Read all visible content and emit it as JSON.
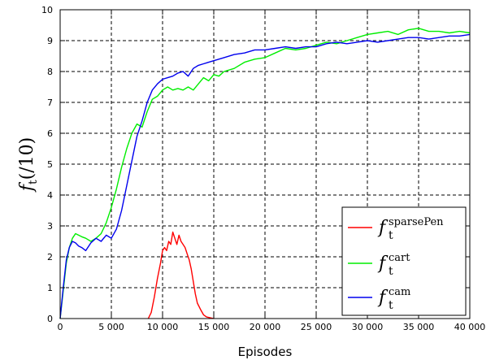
{
  "chart_data": {
    "type": "line",
    "xlabel": "Episodes",
    "ylabel": {
      "main": "f",
      "sub": "t",
      "rest": "(/10)"
    },
    "xlim": [
      0,
      40000
    ],
    "ylim": [
      0,
      10
    ],
    "xticks": [
      0,
      5000,
      10000,
      15000,
      20000,
      25000,
      30000,
      35000,
      40000
    ],
    "xtick_labels": [
      "0",
      "5 000",
      "10 000",
      "15 000",
      "20 000",
      "25 000",
      "30 000",
      "35 000",
      "40 000"
    ],
    "yticks": [
      0,
      1,
      2,
      3,
      4,
      5,
      6,
      7,
      8,
      9,
      10
    ],
    "ytick_labels": [
      "0",
      "1",
      "2",
      "3",
      "4",
      "5",
      "6",
      "7",
      "8",
      "9",
      "10"
    ],
    "grid": true,
    "legend_position": "bottom-right",
    "series": [
      {
        "name": "sparsePen",
        "legend": {
          "main": "f",
          "sup": "sparsePen",
          "sub": "t"
        },
        "color": "#ff0000",
        "x": [
          8600,
          8900,
          9200,
          9500,
          9800,
          10000,
          10200,
          10400,
          10600,
          10800,
          11000,
          11200,
          11400,
          11600,
          11800,
          12000,
          12200,
          12400,
          12600,
          12800,
          13000,
          13200,
          13400,
          13700,
          14000,
          14300,
          14700,
          15000
        ],
        "y": [
          0,
          0.2,
          0.7,
          1.3,
          1.8,
          2.2,
          2.3,
          2.2,
          2.5,
          2.4,
          2.8,
          2.6,
          2.4,
          2.7,
          2.5,
          2.4,
          2.3,
          2.1,
          1.9,
          1.6,
          1.2,
          0.8,
          0.5,
          0.3,
          0.12,
          0.05,
          0.02,
          0
        ]
      },
      {
        "name": "cart",
        "legend": {
          "main": "f",
          "sup": "cart",
          "sub": "t"
        },
        "color": "#00ee00",
        "x": [
          0,
          300,
          600,
          900,
          1200,
          1500,
          1800,
          2100,
          2500,
          3000,
          3500,
          4000,
          4500,
          5000,
          5500,
          6000,
          6500,
          7000,
          7500,
          8000,
          8500,
          9000,
          9500,
          10000,
          10500,
          11000,
          11500,
          12000,
          12500,
          13000,
          13500,
          14000,
          14500,
          15000,
          15500,
          16000,
          17000,
          18000,
          19000,
          20000,
          21000,
          22000,
          23000,
          24000,
          25000,
          26000,
          27000,
          28000,
          29000,
          30000,
          31000,
          32000,
          33000,
          34000,
          35000,
          36000,
          37000,
          38000,
          39000,
          40000
        ],
        "y": [
          0,
          0.9,
          1.8,
          2.3,
          2.6,
          2.75,
          2.7,
          2.65,
          2.6,
          2.5,
          2.6,
          2.75,
          3.1,
          3.6,
          4.2,
          4.9,
          5.5,
          6.0,
          6.3,
          6.2,
          6.7,
          7.1,
          7.2,
          7.4,
          7.5,
          7.4,
          7.45,
          7.4,
          7.5,
          7.4,
          7.6,
          7.8,
          7.7,
          7.9,
          7.85,
          8.0,
          8.1,
          8.3,
          8.4,
          8.45,
          8.6,
          8.75,
          8.7,
          8.75,
          8.85,
          8.95,
          8.9,
          9.0,
          9.1,
          9.2,
          9.25,
          9.3,
          9.2,
          9.35,
          9.4,
          9.3,
          9.3,
          9.25,
          9.3,
          9.25
        ]
      },
      {
        "name": "cam",
        "legend": {
          "main": "f",
          "sup": "cam",
          "sub": "t"
        },
        "color": "#0000ee",
        "x": [
          0,
          300,
          600,
          900,
          1200,
          1500,
          1800,
          2100,
          2500,
          3000,
          3500,
          4000,
          4500,
          5000,
          5500,
          6000,
          6500,
          7000,
          7500,
          8000,
          8500,
          9000,
          9500,
          10000,
          10500,
          11000,
          11500,
          12000,
          12500,
          13000,
          13500,
          14000,
          14500,
          15000,
          15500,
          16000,
          17000,
          18000,
          19000,
          20000,
          21000,
          22000,
          23000,
          24000,
          25000,
          26000,
          27000,
          28000,
          29000,
          30000,
          31000,
          32000,
          33000,
          34000,
          35000,
          36000,
          37000,
          38000,
          39000,
          40000
        ],
        "y": [
          0,
          1.0,
          1.9,
          2.3,
          2.5,
          2.45,
          2.35,
          2.3,
          2.2,
          2.45,
          2.6,
          2.5,
          2.7,
          2.6,
          2.9,
          3.5,
          4.3,
          5.1,
          5.9,
          6.4,
          7.0,
          7.4,
          7.6,
          7.75,
          7.8,
          7.85,
          7.95,
          8.0,
          7.85,
          8.1,
          8.2,
          8.25,
          8.3,
          8.35,
          8.4,
          8.45,
          8.55,
          8.6,
          8.7,
          8.7,
          8.75,
          8.8,
          8.75,
          8.8,
          8.8,
          8.9,
          8.95,
          8.9,
          8.95,
          9.0,
          8.95,
          9.0,
          9.05,
          9.1,
          9.1,
          9.05,
          9.1,
          9.15,
          9.15,
          9.2
        ]
      }
    ]
  }
}
